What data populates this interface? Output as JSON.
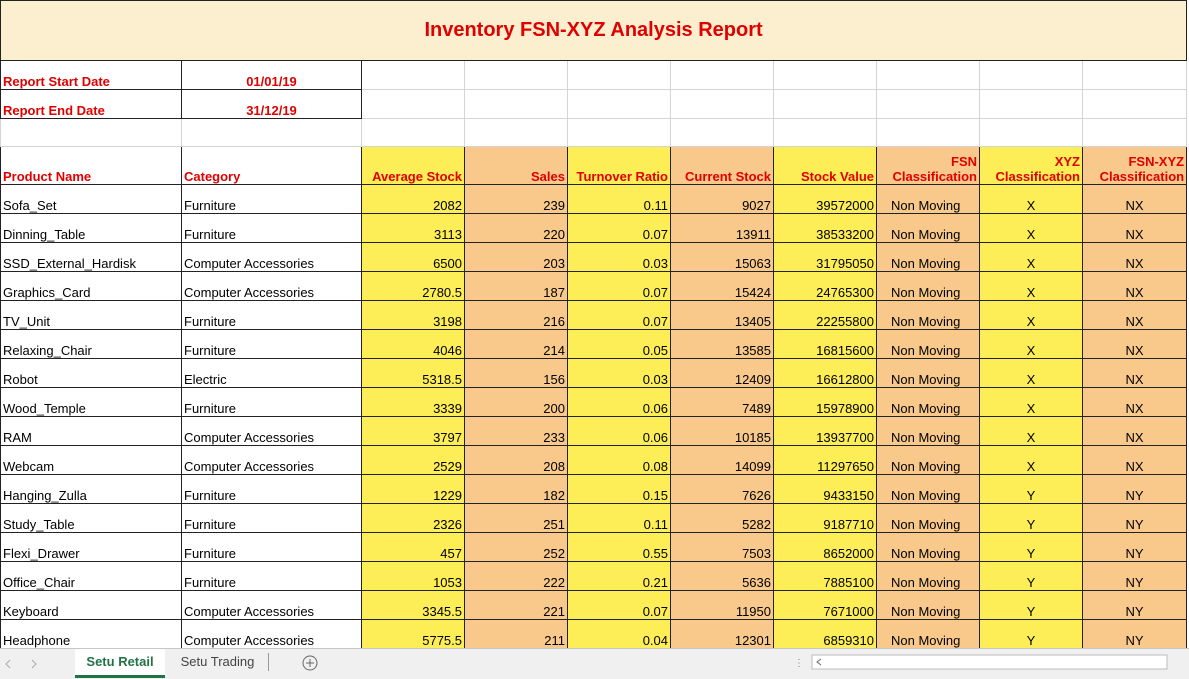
{
  "report": {
    "title": "Inventory FSN-XYZ Analysis Report",
    "start_label": "Report Start Date",
    "start_date": "01/01/19",
    "end_label": "Report End Date",
    "end_date": "31/12/19"
  },
  "table": {
    "columns": [
      "Product Name",
      "Category",
      "Average Stock",
      "Sales",
      "Turnover Ratio",
      "Current Stock",
      "Stock Value",
      "FSN Classification",
      "XYZ Classification",
      "FSN-XYZ Classification"
    ],
    "rows": [
      [
        "Sofa_Set",
        "Furniture",
        2082,
        239,
        0.11,
        9027,
        39572000,
        "Non Moving",
        "X",
        "NX"
      ],
      [
        "Dinning_Table",
        "Furniture",
        3113,
        220,
        0.07,
        13911,
        38533200,
        "Non Moving",
        "X",
        "NX"
      ],
      [
        "SSD_External_Hardisk",
        "Computer Accessories",
        6500,
        203,
        0.03,
        15063,
        31795050,
        "Non Moving",
        "X",
        "NX"
      ],
      [
        "Graphics_Card",
        "Computer Accessories",
        2780.5,
        187,
        0.07,
        15424,
        24765300,
        "Non Moving",
        "X",
        "NX"
      ],
      [
        "TV_Unit",
        "Furniture",
        3198,
        216,
        0.07,
        13405,
        22255800,
        "Non Moving",
        "X",
        "NX"
      ],
      [
        "Relaxing_Chair",
        "Furniture",
        4046,
        214,
        0.05,
        13585,
        16815600,
        "Non Moving",
        "X",
        "NX"
      ],
      [
        "Robot",
        "Electric",
        5318.5,
        156,
        0.03,
        12409,
        16612800,
        "Non Moving",
        "X",
        "NX"
      ],
      [
        "Wood_Temple",
        "Furniture",
        3339,
        200,
        0.06,
        7489,
        15978900,
        "Non Moving",
        "X",
        "NX"
      ],
      [
        "RAM",
        "Computer Accessories",
        3797,
        233,
        0.06,
        10185,
        13937700,
        "Non Moving",
        "X",
        "NX"
      ],
      [
        "Webcam",
        "Computer Accessories",
        2529,
        208,
        0.08,
        14099,
        11297650,
        "Non Moving",
        "X",
        "NX"
      ],
      [
        "Hanging_Zulla",
        "Furniture",
        1229,
        182,
        0.15,
        7626,
        9433150,
        "Non Moving",
        "Y",
        "NY"
      ],
      [
        "Study_Table",
        "Furniture",
        2326,
        251,
        0.11,
        5282,
        9187710,
        "Non Moving",
        "Y",
        "NY"
      ],
      [
        "Flexi_Drawer",
        "Furniture",
        457,
        252,
        0.55,
        7503,
        8652000,
        "Non Moving",
        "Y",
        "NY"
      ],
      [
        "Office_Chair",
        "Furniture",
        1053,
        222,
        0.21,
        5636,
        7885100,
        "Non Moving",
        "Y",
        "NY"
      ],
      [
        "Keyboard",
        "Computer Accessories",
        3345.5,
        221,
        0.07,
        11950,
        7671000,
        "Non Moving",
        "Y",
        "NY"
      ],
      [
        "Headphone",
        "Computer Accessories",
        5775.5,
        211,
        0.04,
        12301,
        6859310,
        "Non Moving",
        "Y",
        "NY"
      ]
    ]
  },
  "tabs": [
    "Setu Retail",
    "Setu Trading"
  ]
}
